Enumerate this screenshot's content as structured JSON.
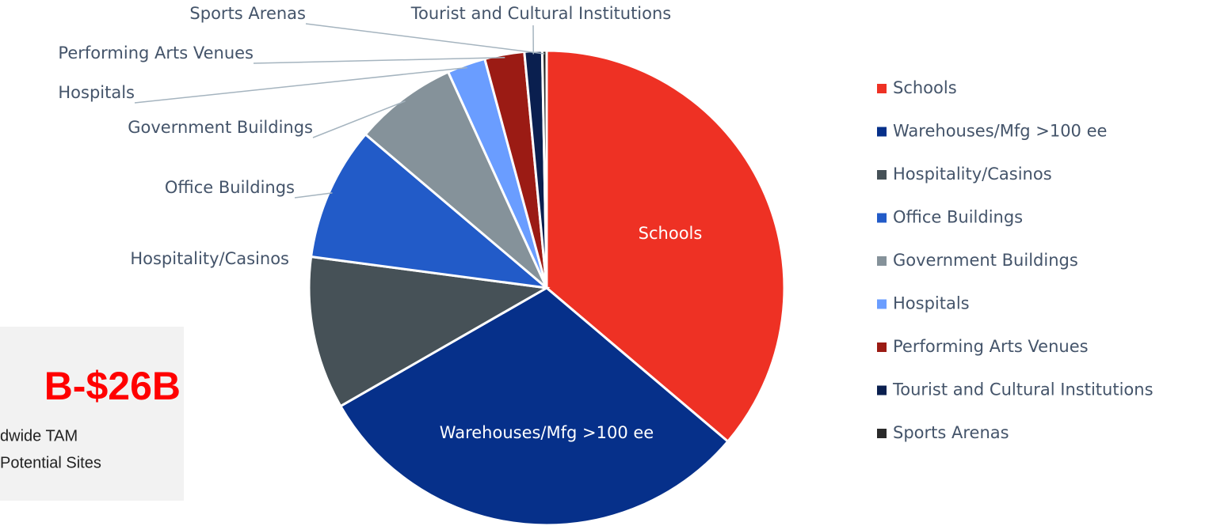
{
  "chart_data": {
    "type": "pie",
    "categories": [
      "Schools",
      "Warehouses/Mfg >100 ee",
      "Hospitality/Casinos",
      "Office Buildings",
      "Government Buildings",
      "Hospitals",
      "Performing Arts Venues",
      "Tourist and Cultural Institutions",
      "Sports Arenas"
    ],
    "values": [
      36.2,
      30.5,
      10.4,
      9.1,
      7.0,
      2.6,
      2.7,
      1.2,
      0.3
    ],
    "colors": [
      "#ee3124",
      "#06308a",
      "#465157",
      "#225bc8",
      "#85929a",
      "#6a9dff",
      "#9b1b14",
      "#0a1f4f",
      "#2a2a2a"
    ],
    "legend": "right"
  },
  "callout": {
    "headline": "B-$26B",
    "lines": [
      "dwide TAM",
      "Potential Sites"
    ]
  }
}
